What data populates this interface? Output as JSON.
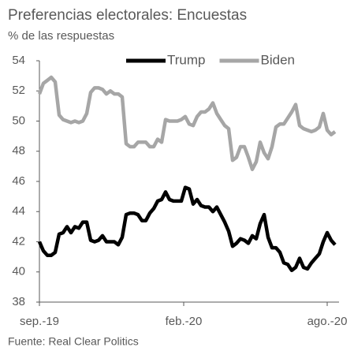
{
  "chart_data": {
    "type": "line",
    "title": "Preferencias electorales: Encuestas",
    "subtitle": "% de las respuestas",
    "source": "Fuente: Real Clear Politics",
    "x": [
      0,
      5,
      10,
      15,
      20,
      25,
      30,
      35,
      40,
      45,
      50,
      55,
      60,
      65,
      70,
      75,
      80,
      85,
      90,
      95,
      100,
      105,
      110,
      115,
      120,
      125,
      130,
      135,
      140,
      145,
      150,
      155,
      160,
      165,
      170,
      175,
      180,
      185,
      190,
      195,
      200,
      205,
      210,
      215,
      220,
      225,
      230,
      235,
      240,
      245,
      250,
      255,
      260,
      265,
      270,
      275,
      280,
      285,
      290,
      295,
      300,
      305,
      310,
      315,
      320,
      325,
      330,
      335,
      340,
      345,
      350,
      355,
      360,
      365,
      370,
      375
    ],
    "series": [
      {
        "name": "Trump",
        "color": "#000000",
        "values": [
          42.0,
          41.4,
          41.1,
          41.1,
          41.3,
          42.5,
          42.6,
          43.0,
          42.6,
          43.0,
          42.9,
          43.3,
          43.3,
          42.1,
          42.0,
          42.1,
          42.4,
          42.0,
          42.0,
          42.0,
          41.8,
          42.3,
          43.8,
          43.9,
          43.9,
          43.8,
          43.4,
          43.4,
          43.9,
          44.2,
          44.7,
          44.8,
          45.3,
          44.8,
          44.7,
          44.7,
          44.7,
          45.6,
          45.5,
          44.5,
          44.8,
          44.4,
          44.3,
          44.3,
          44.0,
          44.3,
          43.8,
          43.3,
          42.7,
          41.7,
          41.9,
          42.2,
          42.1,
          41.9,
          42.4,
          42.2,
          43.2,
          43.8,
          42.3,
          41.6,
          41.6,
          41.3,
          40.6,
          40.5,
          40.1,
          40.3,
          40.9,
          40.3,
          40.2,
          40.6,
          40.9,
          41.2,
          42.0,
          42.6,
          42.1,
          41.8
        ]
      },
      {
        "name": "Biden",
        "color": "#a6a6a6",
        "values": [
          51.8,
          52.5,
          52.7,
          52.9,
          52.6,
          50.4,
          50.1,
          50.0,
          49.9,
          50.0,
          49.9,
          50.0,
          50.5,
          51.9,
          52.2,
          52.2,
          52.1,
          51.8,
          52.0,
          51.8,
          51.8,
          51.6,
          48.5,
          48.3,
          48.3,
          48.6,
          48.6,
          48.6,
          48.3,
          48.3,
          48.8,
          48.6,
          50.1,
          50.0,
          50.0,
          50.0,
          50.1,
          50.3,
          49.8,
          49.7,
          50.3,
          50.6,
          50.6,
          50.8,
          51.2,
          50.5,
          50.1,
          49.7,
          49.5,
          47.4,
          47.6,
          48.3,
          48.3,
          47.6,
          46.8,
          47.3,
          48.6,
          47.9,
          47.5,
          48.3,
          49.6,
          49.8,
          49.8,
          50.2,
          50.6,
          51.1,
          49.7,
          49.5,
          49.4,
          49.3,
          49.4,
          49.6,
          50.5,
          49.4,
          49.1,
          49.3
        ]
      }
    ],
    "xlim": [
      0,
      380
    ],
    "xticks": [
      {
        "value": 0,
        "label": "sep.-19"
      },
      {
        "value": 183,
        "label": "feb.-20"
      },
      {
        "value": 365,
        "label": "ago.-20"
      }
    ],
    "ylim": [
      38,
      54
    ],
    "yticks": [
      38,
      40,
      42,
      44,
      46,
      48,
      50,
      52,
      54
    ],
    "grid": false,
    "legend": "top-right"
  }
}
